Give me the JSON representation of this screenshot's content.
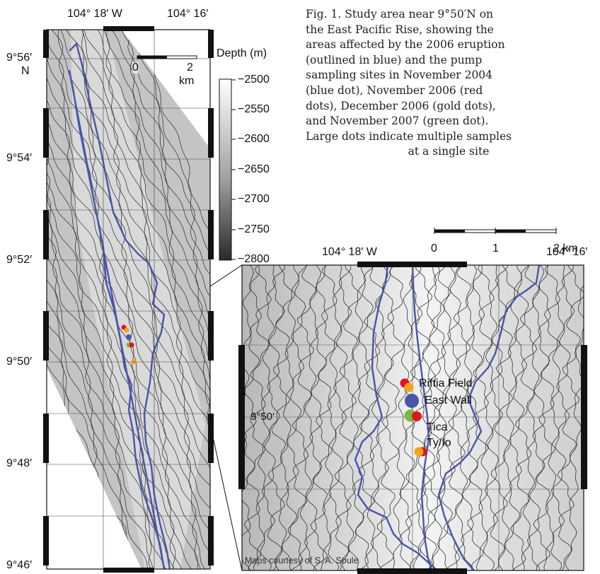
{
  "figure": {
    "caption_lines": [
      "Fig. 1. Study area near 9°50′N on",
      "the East Pacific Rise, showing the",
      "areas affected by the 2006 eruption",
      "(outlined in blue) and the pump",
      "sampling sites in November 2004",
      "(blue dot), November 2006 (red",
      "dots), December 2006 (gold dots),",
      "and November 2007 (green dot).",
      "Large dots indicate multiple samples",
      "at a single site"
    ],
    "credit": "Maps courtesy of S. A. Soule"
  },
  "overview_map": {
    "lon_labels": [
      "104° 18′ W",
      "104° 16′"
    ],
    "lat_labels": [
      "9°56′",
      "9°54′",
      "9°52′",
      "9°50′",
      "9°48′",
      "9°46′"
    ],
    "lat_hemisphere": "N",
    "scale_bar": {
      "labels": [
        "0",
        "2",
        "km"
      ]
    }
  },
  "depth_legend": {
    "title": "Depth (m)",
    "ticks": [
      "−2500",
      "−2550",
      "−2600",
      "−2650",
      "−2700",
      "−2750",
      "−2800"
    ]
  },
  "inset_map": {
    "lon_labels": [
      "104° 18′ W",
      "104° 16′"
    ],
    "lat_label": "9°50′",
    "scale_bar": {
      "labels": [
        "0",
        "1",
        "2 km"
      ]
    },
    "sites": [
      "Riftia Field",
      "East Wall",
      "Tica",
      "Ty/Io"
    ]
  },
  "colors": {
    "outline_blue": "#4a55a8",
    "dot_red": "#e0151b",
    "dot_gold": "#f5a21b",
    "dot_blue": "#4a55a8",
    "dot_green": "#79b83a",
    "contour": "#222222",
    "frame": "#111111"
  }
}
